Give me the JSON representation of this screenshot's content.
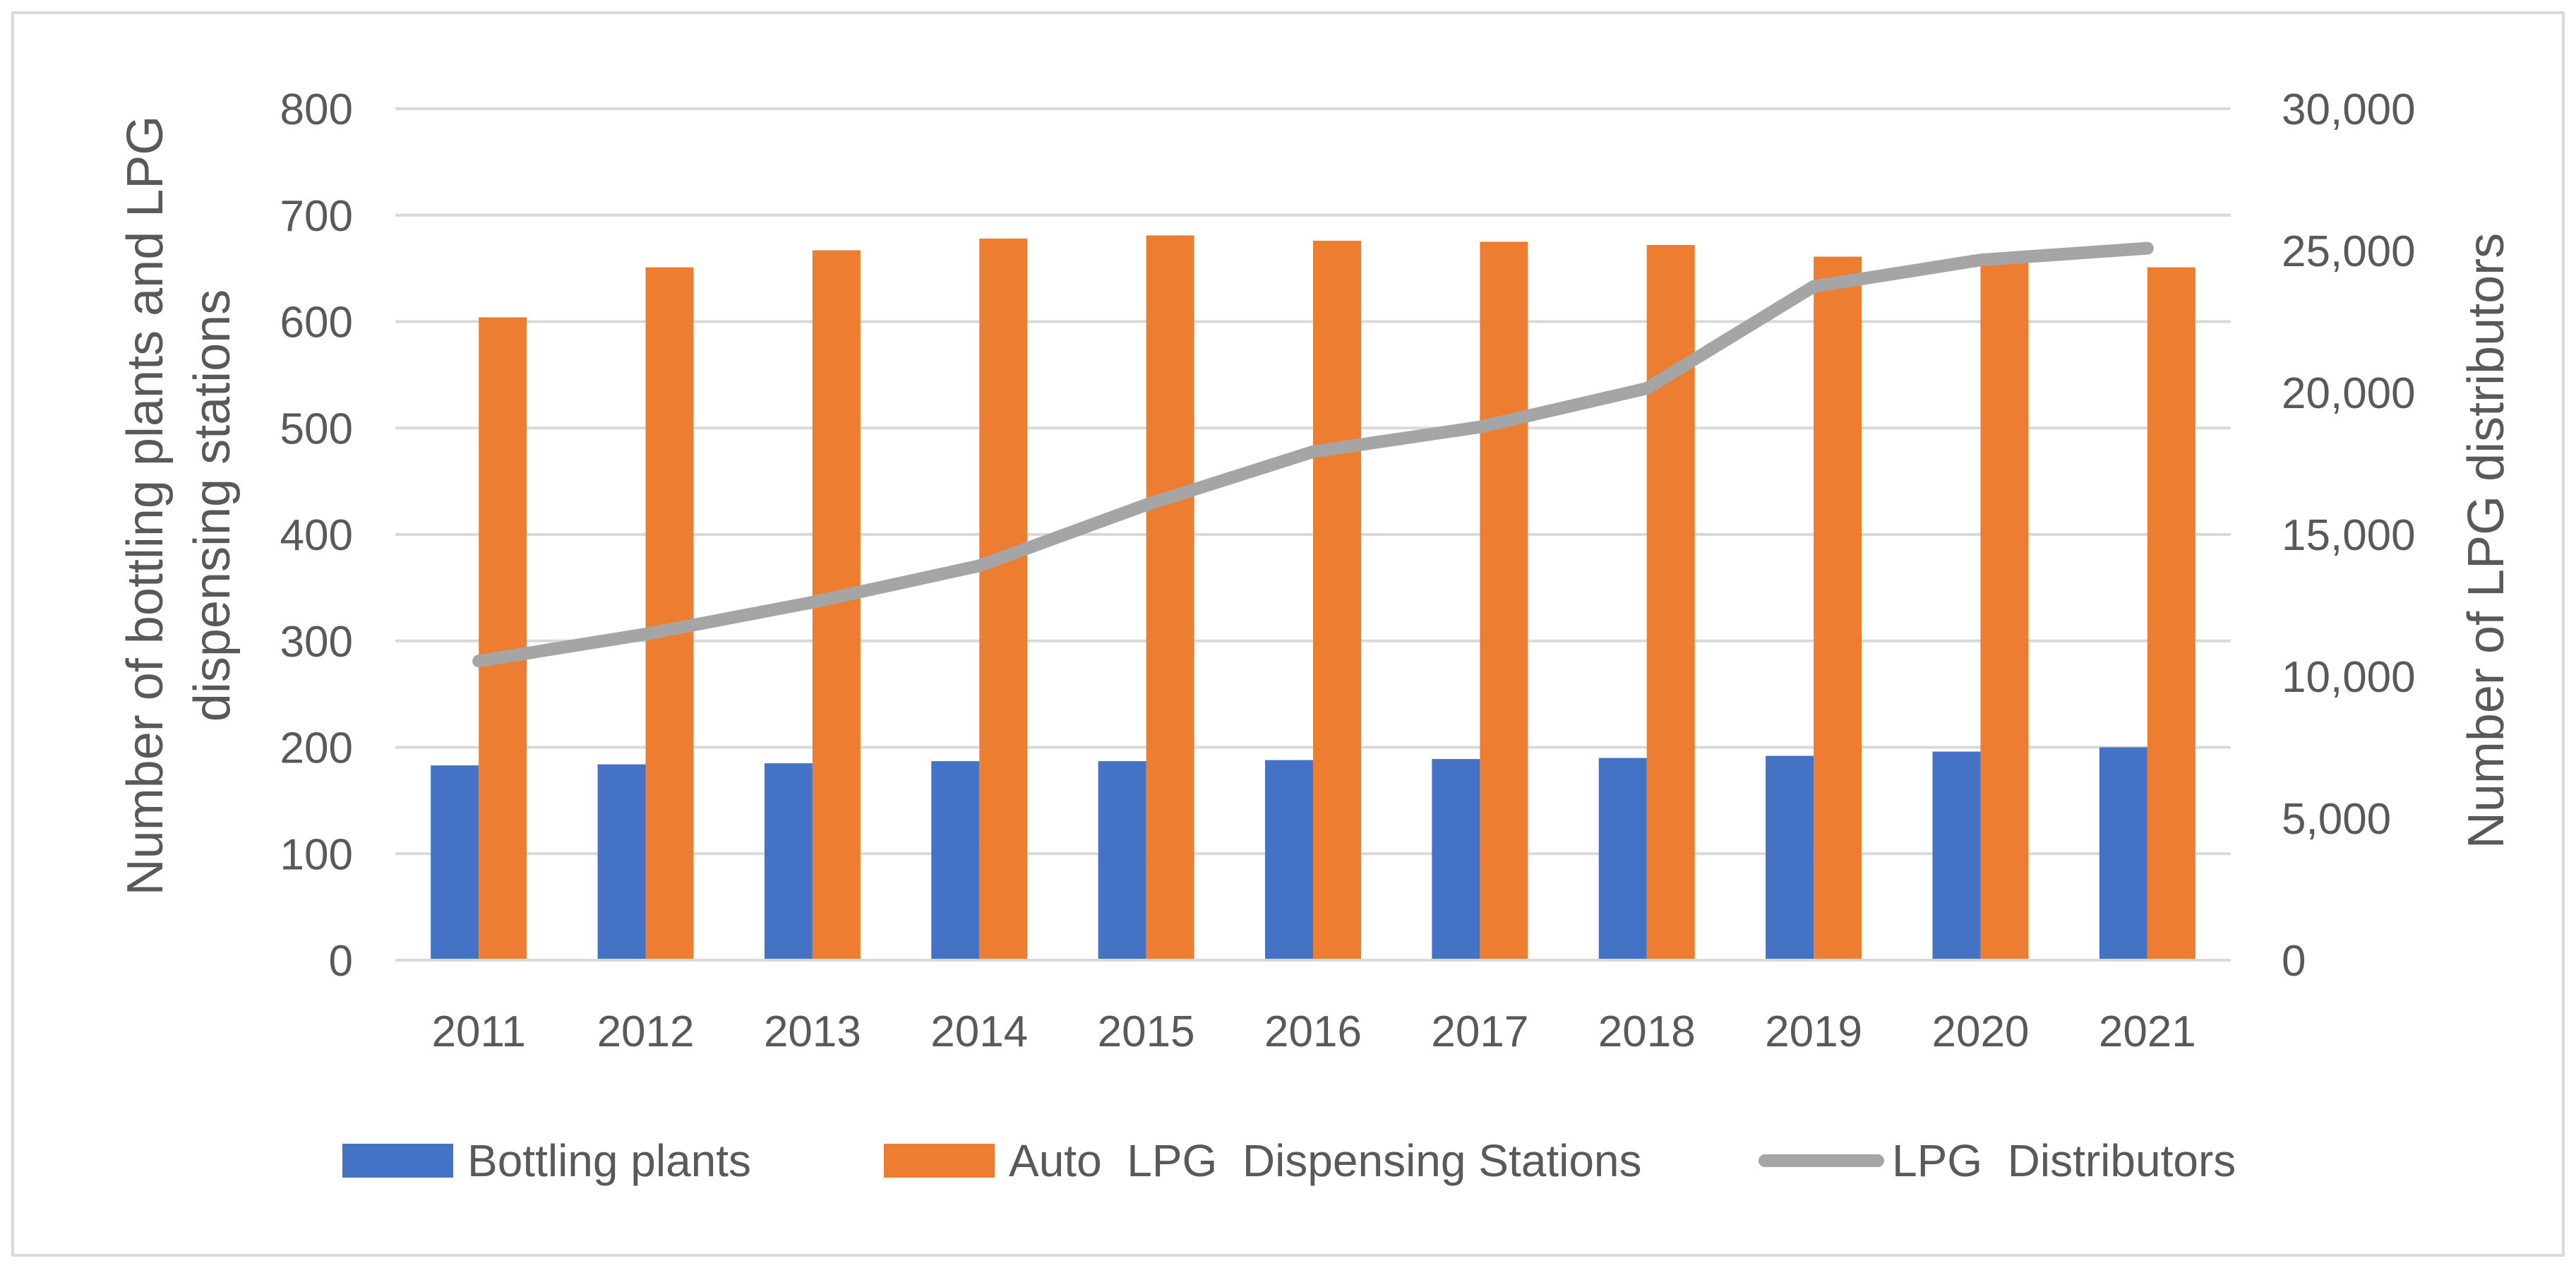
{
  "chart_data": {
    "type": "bar",
    "title": "",
    "categories": [
      "2011",
      "2012",
      "2013",
      "2014",
      "2015",
      "2016",
      "2017",
      "2018",
      "2019",
      "2020",
      "2021"
    ],
    "series": [
      {
        "name": "Bottling plants",
        "kind": "bar",
        "axis": "left",
        "color": "#4472c4",
        "values": [
          183,
          184,
          185,
          187,
          187,
          188,
          189,
          190,
          192,
          196,
          200
        ]
      },
      {
        "name": "Auto  LPG  Dispensing Stations",
        "kind": "bar",
        "axis": "left",
        "color": "#ed7d31",
        "values": [
          604,
          651,
          667,
          678,
          681,
          676,
          675,
          672,
          661,
          657,
          651
        ]
      },
      {
        "name": "LPG  Distributors",
        "kind": "line",
        "axis": "right",
        "color": "#a5a5a5",
        "values": [
          10541,
          11489,
          12610,
          13896,
          16045,
          17916,
          18786,
          20146,
          23737,
          24670,
          25083
        ]
      }
    ],
    "y_left": {
      "label_line1": "Number of bottling plants and LPG",
      "label_line2": "dispensing stations",
      "ylim": [
        0,
        800
      ],
      "ticks": [
        "0",
        "100",
        "200",
        "300",
        "400",
        "500",
        "600",
        "700",
        "800"
      ]
    },
    "y_right": {
      "label": "Number of LPG distributors",
      "ylim": [
        0,
        30000
      ],
      "ticks": [
        "0",
        "5,000",
        "10,000",
        "15,000",
        "20,000",
        "25,000",
        "30,000"
      ]
    },
    "grid": true,
    "legend_position": "bottom"
  }
}
